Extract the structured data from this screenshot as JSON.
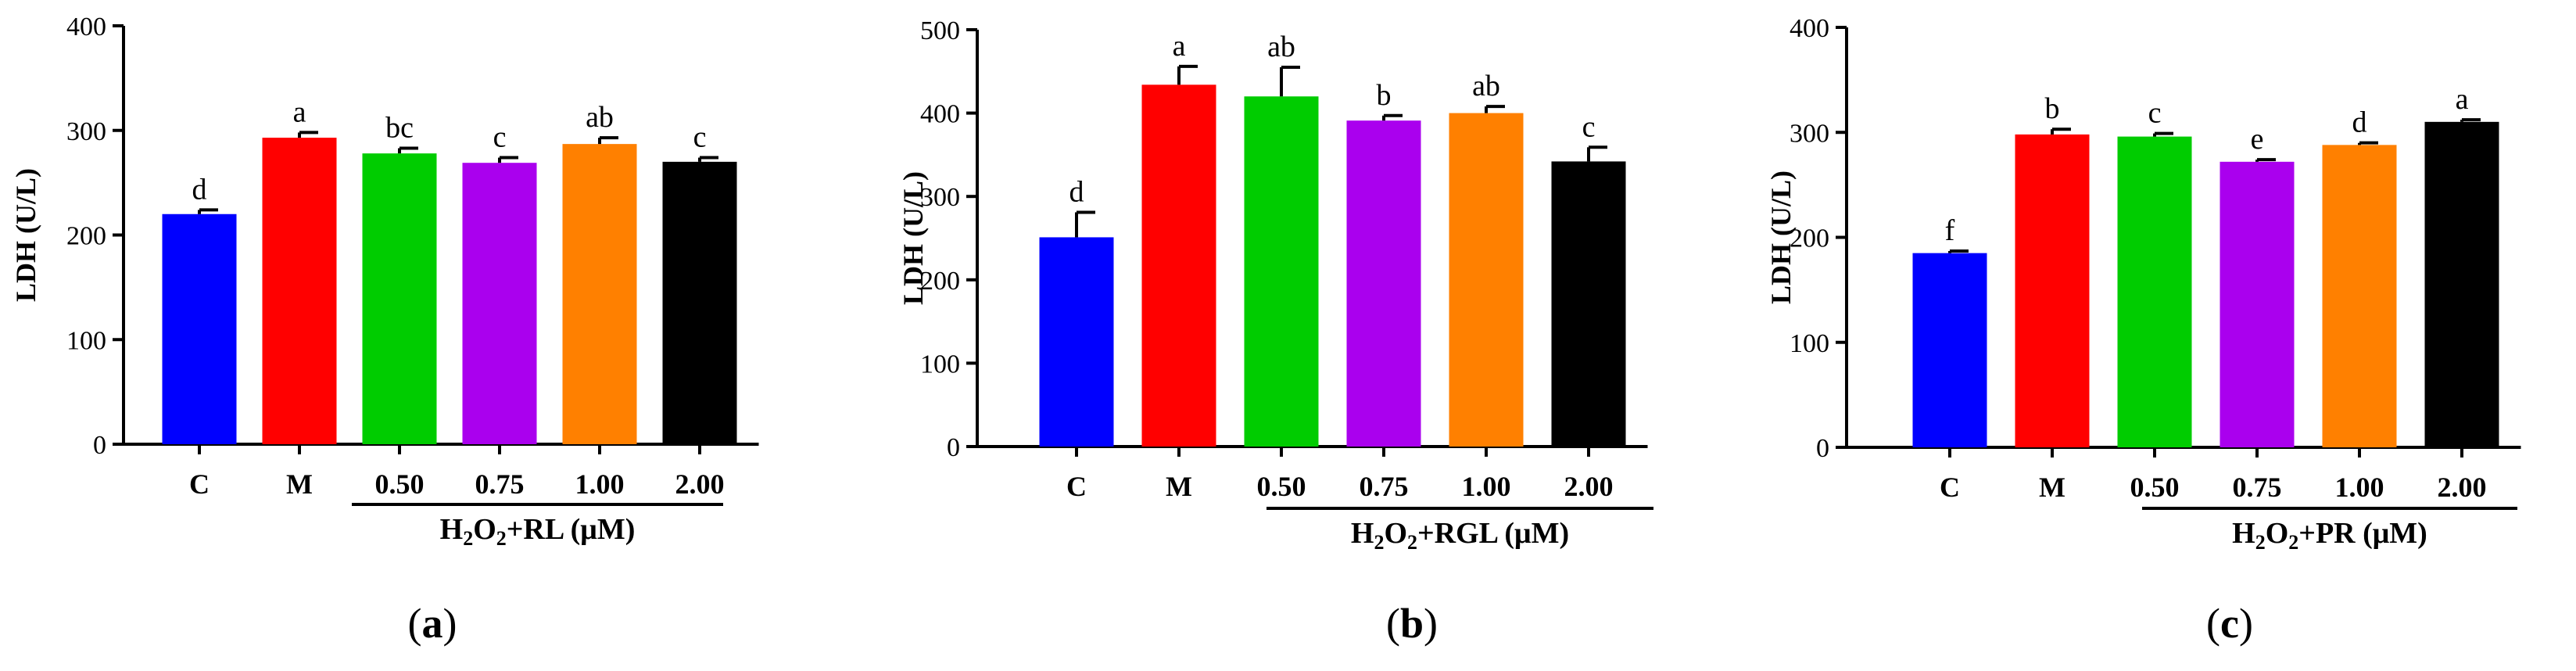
{
  "chart_data": [
    {
      "type": "bar",
      "panel": "a",
      "ylabel": "LDH (U/L)",
      "ylim": [
        0,
        400
      ],
      "yticks": [
        0,
        100,
        200,
        300,
        400
      ],
      "categories": [
        "C",
        "M",
        "0.50",
        "0.75",
        "1.00",
        "2.00"
      ],
      "values": [
        220,
        293,
        278,
        269,
        287,
        270
      ],
      "errors": [
        4,
        5,
        5,
        5,
        6,
        4
      ],
      "significance": [
        "d",
        "a",
        "bc",
        "c",
        "ab",
        "c"
      ],
      "colors": [
        "#0000ff",
        "#ff0000",
        "#00cc00",
        "#aa00ee",
        "#ff8000",
        "#000000"
      ],
      "group_label": {
        "pre": "H",
        "sub1": "2",
        "mid": "O",
        "sub2": "2",
        "post": "+RL (μM)"
      }
    },
    {
      "type": "bar",
      "panel": "b",
      "ylabel": "LDH (U/L)",
      "ylim": [
        0,
        500
      ],
      "yticks": [
        0,
        100,
        200,
        300,
        400,
        500
      ],
      "categories": [
        "C",
        "M",
        "0.50",
        "0.75",
        "1.00",
        "2.00"
      ],
      "values": [
        251,
        434,
        420,
        391,
        400,
        342
      ],
      "errors": [
        30,
        22,
        35,
        6,
        8,
        17
      ],
      "significance": [
        "d",
        "a",
        "ab",
        "b",
        "ab",
        "c"
      ],
      "colors": [
        "#0000ff",
        "#ff0000",
        "#00cc00",
        "#aa00ee",
        "#ff8000",
        "#000000"
      ],
      "group_label": {
        "pre": "H",
        "sub1": "2",
        "mid": "O",
        "sub2": "2",
        "post": "+RGL (μM)"
      }
    },
    {
      "type": "bar",
      "panel": "c",
      "ylabel": "LDH (U/L)",
      "ylim": [
        0,
        400
      ],
      "yticks": [
        0,
        100,
        200,
        300,
        400
      ],
      "categories": [
        "C",
        "M",
        "0.50",
        "0.75",
        "1.00",
        "2.00"
      ],
      "values": [
        185,
        298,
        296,
        272,
        288,
        310
      ],
      "errors": [
        2,
        5,
        3,
        2,
        2,
        2
      ],
      "significance": [
        "f",
        "b",
        "c",
        "e",
        "d",
        "a"
      ],
      "colors": [
        "#0000ff",
        "#ff0000",
        "#00cc00",
        "#aa00ee",
        "#ff8000",
        "#000000"
      ],
      "group_label": {
        "pre": "H",
        "sub1": "2",
        "mid": "O",
        "sub2": "2",
        "post": "+PR (μM)"
      }
    }
  ]
}
